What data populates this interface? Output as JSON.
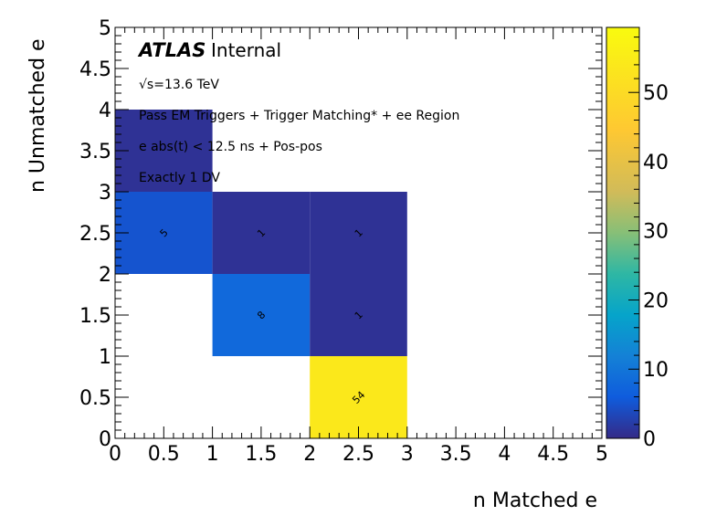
{
  "chart_data": {
    "type": "heatmap",
    "xlabel": "n Matched e",
    "ylabel": "n Unmatched e",
    "xlim": [
      0,
      5
    ],
    "ylim": [
      0,
      5
    ],
    "x_ticks": [
      "0",
      "0.5",
      "1",
      "1.5",
      "2",
      "2.5",
      "3",
      "3.5",
      "4",
      "4.5",
      "5"
    ],
    "y_ticks": [
      "0",
      "0.5",
      "1",
      "1.5",
      "2",
      "2.5",
      "3",
      "3.5",
      "4",
      "4.5",
      "5"
    ],
    "z_range": [
      0,
      59.4
    ],
    "colorbar_ticks": [
      "0",
      "10",
      "20",
      "30",
      "40",
      "50"
    ],
    "cells": [
      {
        "x": 0,
        "y": 2,
        "value": 5,
        "label": "5"
      },
      {
        "x": 0,
        "y": 3,
        "value": 1,
        "label": ""
      },
      {
        "x": 1,
        "y": 1,
        "value": 8,
        "label": "8"
      },
      {
        "x": 1,
        "y": 2,
        "value": 1,
        "label": "1"
      },
      {
        "x": 2,
        "y": 0,
        "value": 54,
        "label": "54"
      },
      {
        "x": 2,
        "y": 1,
        "value": 1,
        "label": "1"
      },
      {
        "x": 2,
        "y": 2,
        "value": 1,
        "label": "1"
      }
    ],
    "annotations": {
      "atlas": "ATLAS",
      "atlas_suffix": "Internal",
      "energy": "√s=13.6 TeV",
      "line1": "Pass EM Triggers + Trigger Matching* + ee Region",
      "line2": "e abs(t) < 12.5 ns + Pos-pos",
      "line3": "Exactly 1 DV"
    }
  }
}
